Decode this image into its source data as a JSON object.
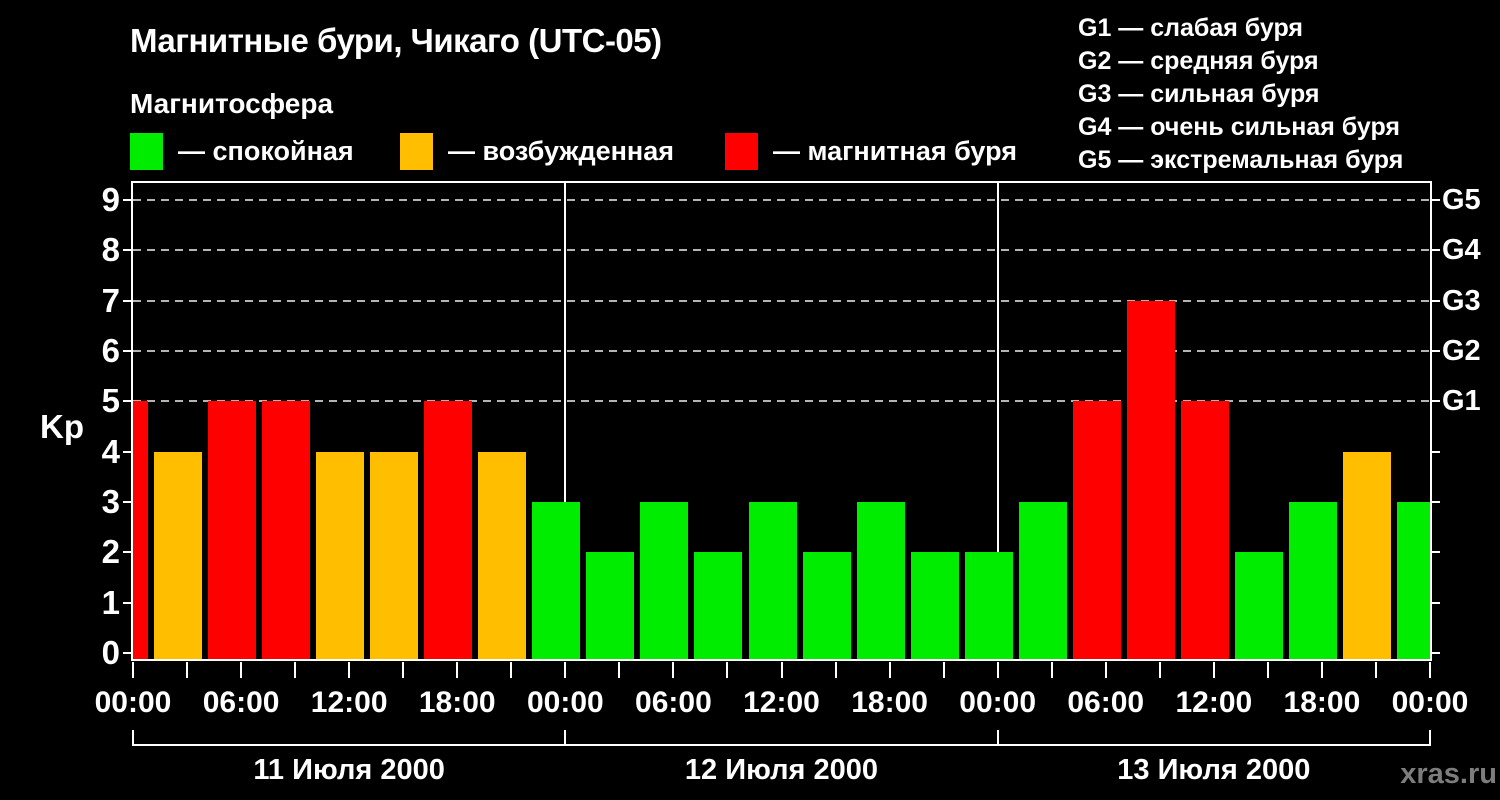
{
  "header": {
    "title": "Магнитные бури, Чикаго (UTC-05)",
    "subtitle": "Магнитосфера"
  },
  "legend": {
    "items": [
      {
        "label": "— спокойная",
        "state": "calm"
      },
      {
        "label": "— возбужденная",
        "state": "excited"
      },
      {
        "label": "— магнитная буря",
        "state": "storm"
      }
    ]
  },
  "g_legend": {
    "items": [
      "G1 — слабая буря",
      "G2 — средняя буря",
      "G3 — сильная буря",
      "G4 — очень сильная буря",
      "G5 — экстремальная буря"
    ]
  },
  "watermark": "xras.ru",
  "chart_data": {
    "type": "bar",
    "title": "Магнитные бури, Чикаго (UTC-05)",
    "ylabel": "Kp",
    "ylim": [
      0,
      9.5
    ],
    "x_range_hours": [
      0,
      72
    ],
    "x_minor_tick_step_hours": 3,
    "grid": "dashed horizontal lines at Kp 5..9, legend right",
    "colors": {
      "calm": "#00ed00",
      "excited": "#ffbe00",
      "storm": "#ff0000"
    },
    "y_ticks": [
      "0",
      "1",
      "2",
      "3",
      "4",
      "5",
      "6",
      "7",
      "8",
      "9"
    ],
    "gridlines_at": [
      5,
      6,
      7,
      8,
      9
    ],
    "right_axis_labels": [
      {
        "value": 5,
        "label": "G1"
      },
      {
        "value": 6,
        "label": "G2"
      },
      {
        "value": 7,
        "label": "G3"
      },
      {
        "value": 8,
        "label": "G4"
      },
      {
        "value": 9,
        "label": "G5"
      }
    ],
    "x_major_ticks": [
      {
        "hour": 0,
        "label": "00:00"
      },
      {
        "hour": 6,
        "label": "06:00"
      },
      {
        "hour": 12,
        "label": "12:00"
      },
      {
        "hour": 18,
        "label": "18:00"
      },
      {
        "hour": 24,
        "label": "00:00"
      },
      {
        "hour": 30,
        "label": "06:00"
      },
      {
        "hour": 36,
        "label": "12:00"
      },
      {
        "hour": 42,
        "label": "18:00"
      },
      {
        "hour": 48,
        "label": "00:00"
      },
      {
        "hour": 54,
        "label": "06:00"
      },
      {
        "hour": 60,
        "label": "12:00"
      },
      {
        "hour": 66,
        "label": "18:00"
      },
      {
        "hour": 72,
        "label": "00:00"
      }
    ],
    "day_boundaries_hours": [
      24,
      48
    ],
    "day_bracket_hours": [
      0,
      24,
      48,
      72
    ],
    "days": [
      {
        "label": "11 Июля 2000",
        "start_hour": 0,
        "end_hour": 24
      },
      {
        "label": "12 Июля 2000",
        "start_hour": 24,
        "end_hour": 48
      },
      {
        "label": "13 Июля 2000",
        "start_hour": 48,
        "end_hour": 72
      }
    ],
    "bars": [
      {
        "hour": 0,
        "kp": 5,
        "state": "storm"
      },
      {
        "hour": 3,
        "kp": 4,
        "state": "excited"
      },
      {
        "hour": 6,
        "kp": 5,
        "state": "storm"
      },
      {
        "hour": 9,
        "kp": 5,
        "state": "storm"
      },
      {
        "hour": 12,
        "kp": 4,
        "state": "excited"
      },
      {
        "hour": 15,
        "kp": 4,
        "state": "excited"
      },
      {
        "hour": 18,
        "kp": 5,
        "state": "storm"
      },
      {
        "hour": 21,
        "kp": 4,
        "state": "excited"
      },
      {
        "hour": 24,
        "kp": 3,
        "state": "calm"
      },
      {
        "hour": 27,
        "kp": 2,
        "state": "calm"
      },
      {
        "hour": 30,
        "kp": 3,
        "state": "calm"
      },
      {
        "hour": 33,
        "kp": 2,
        "state": "calm"
      },
      {
        "hour": 36,
        "kp": 3,
        "state": "calm"
      },
      {
        "hour": 39,
        "kp": 2,
        "state": "calm"
      },
      {
        "hour": 42,
        "kp": 3,
        "state": "calm"
      },
      {
        "hour": 45,
        "kp": 2,
        "state": "calm"
      },
      {
        "hour": 48,
        "kp": 2,
        "state": "calm"
      },
      {
        "hour": 51,
        "kp": 3,
        "state": "calm"
      },
      {
        "hour": 54,
        "kp": 5,
        "state": "storm"
      },
      {
        "hour": 57,
        "kp": 7,
        "state": "storm"
      },
      {
        "hour": 60,
        "kp": 5,
        "state": "storm"
      },
      {
        "hour": 63,
        "kp": 2,
        "state": "calm"
      },
      {
        "hour": 66,
        "kp": 3,
        "state": "calm"
      },
      {
        "hour": 69,
        "kp": 4,
        "state": "excited"
      },
      {
        "hour": 72,
        "kp": 3,
        "state": "calm"
      }
    ]
  }
}
